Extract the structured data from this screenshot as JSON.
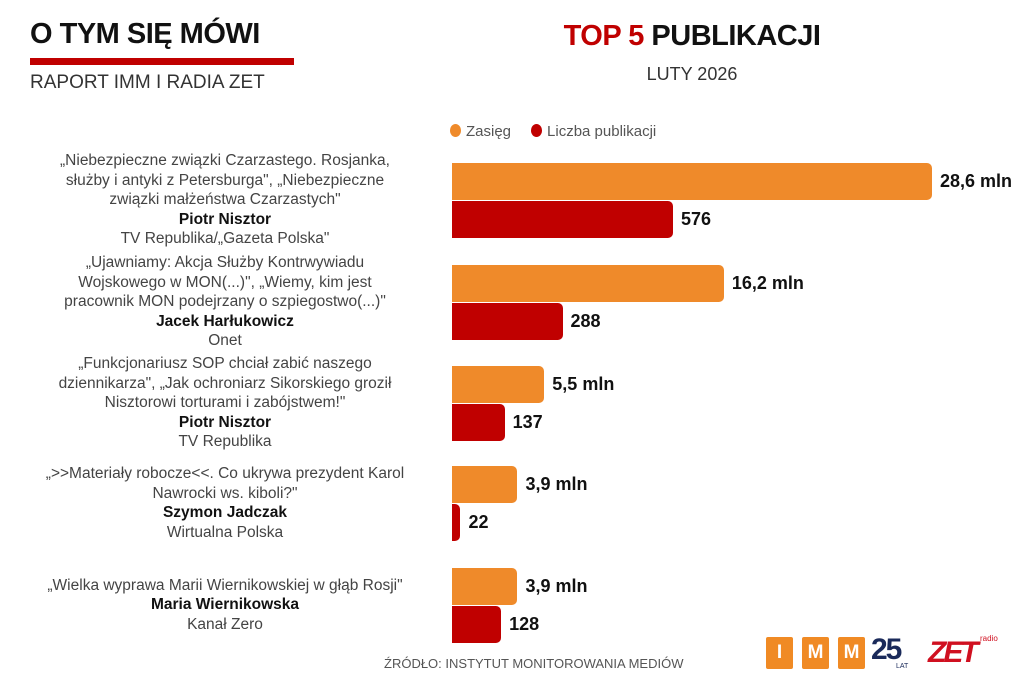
{
  "header": {
    "title": "O TYM SIĘ MÓWI",
    "subtitle": "RAPORT IMM I RADIA ZET",
    "chart_title_red": "TOP 5",
    "chart_title_black": "PUBLIKACJI",
    "period": "LUTY 2026"
  },
  "footer": {
    "source": "ŹRÓDŁO: INSTYTUT MONITOROWANIA MEDIÓW",
    "logo_imm": [
      "I",
      "M",
      "M"
    ],
    "logo_25": "25",
    "logo_lat": "LAT",
    "logo_zet": "ZET",
    "logo_radio": "radio"
  },
  "chart_data": {
    "type": "bar",
    "orientation": "horizontal",
    "title": "TOP 5 PUBLIKACJI",
    "legend": [
      "Zasięg",
      "Liczba publikacji"
    ],
    "legend_position": "top",
    "colors": {
      "Zasięg": "#ef8a2a",
      "Liczba publikacji": "#c00000"
    },
    "categories": [
      {
        "title": [
          "„Niebezpieczne związki Czarzastego. Rosjanka,",
          "służby i antyki z Petersburga\", „Niebezpieczne",
          "związki małżeństwa Czarzastych\""
        ],
        "author": "Piotr Nisztor",
        "outlet": "TV Republika/„Gazeta Polska\""
      },
      {
        "title": [
          "„Ujawniamy: Akcja Służby Kontrwywiadu",
          "Wojskowego w MON(...)\",  „Wiemy, kim jest",
          "pracownik MON podejrzany o szpiegostwo(...)\""
        ],
        "author": "Jacek Harłukowicz",
        "outlet": "Onet"
      },
      {
        "title": [
          "„Funkcjonariusz SOP chciał zabić naszego",
          "dziennikarza\", „Jak ochroniarz Sikorskiego groził",
          "Nisztorowi torturami i zabójstwem!\""
        ],
        "author": "Piotr Nisztor",
        "outlet": "TV Republika"
      },
      {
        "title": [
          "„>>Materiały robocze<<. Co ukrywa prezydent Karol",
          "Nawrocki ws. kiboli?\""
        ],
        "author": "Szymon Jadczak",
        "outlet": "Wirtualna Polska"
      },
      {
        "title": [
          "„Wielka wyprawa Marii Wiernikowskiej w głąb Rosji\""
        ],
        "author": "Maria Wiernikowska",
        "outlet": "Kanał Zero"
      }
    ],
    "series": [
      {
        "name": "Zasięg",
        "unit": "mln",
        "values": [
          28.6,
          16.2,
          5.5,
          3.9,
          3.9
        ],
        "labels": [
          "28,6 mln",
          "16,2 mln",
          "5,5 mln",
          "3,9 mln",
          "3,9 mln"
        ]
      },
      {
        "name": "Liczba publikacji",
        "values": [
          576,
          288,
          137,
          22,
          128
        ],
        "labels": [
          "576",
          "288",
          "137",
          "22",
          "128"
        ]
      }
    ]
  }
}
